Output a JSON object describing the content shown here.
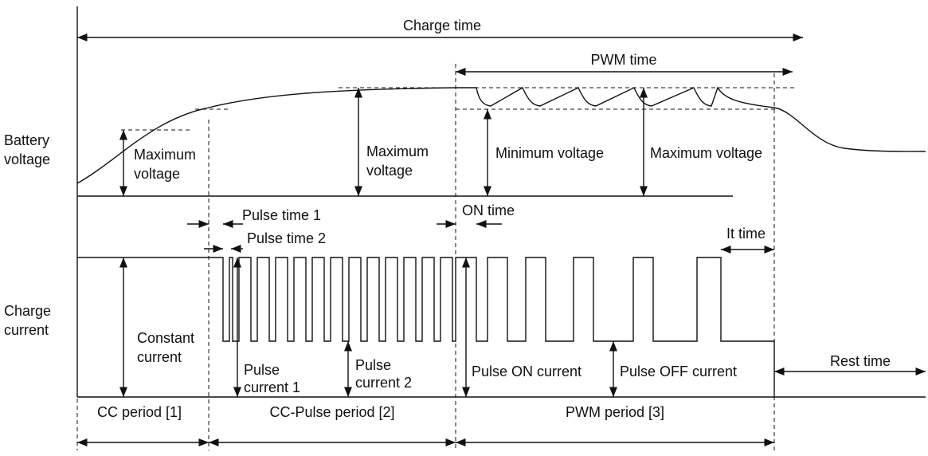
{
  "diagram": {
    "charge_time": "Charge time",
    "pwm_time": "PWM time",
    "battery_voltage": [
      "Battery",
      "voltage"
    ],
    "max_voltage_1": [
      "Maximum",
      "voltage"
    ],
    "max_voltage_2": [
      "Maximum",
      "voltage"
    ],
    "min_voltage": "Minimum voltage",
    "max_voltage_3": "Maximum voltage",
    "pulse_time_1": "Pulse time 1",
    "pulse_time_2": "Pulse time 2",
    "on_time": "ON time",
    "it_time": "It time",
    "charge_current": [
      "Charge",
      "current"
    ],
    "constant_current": [
      "Constant",
      "current"
    ],
    "pulse_current_1": [
      "Pulse",
      "current 1"
    ],
    "pulse_current_2": [
      "Pulse",
      "current 2"
    ],
    "pulse_on_current": "Pulse ON current",
    "pulse_off_current": "Pulse OFF current",
    "rest_time": "Rest time",
    "periods": [
      "CC period [1]",
      "CC-Pulse period [2]",
      "PWM period [3]"
    ]
  }
}
